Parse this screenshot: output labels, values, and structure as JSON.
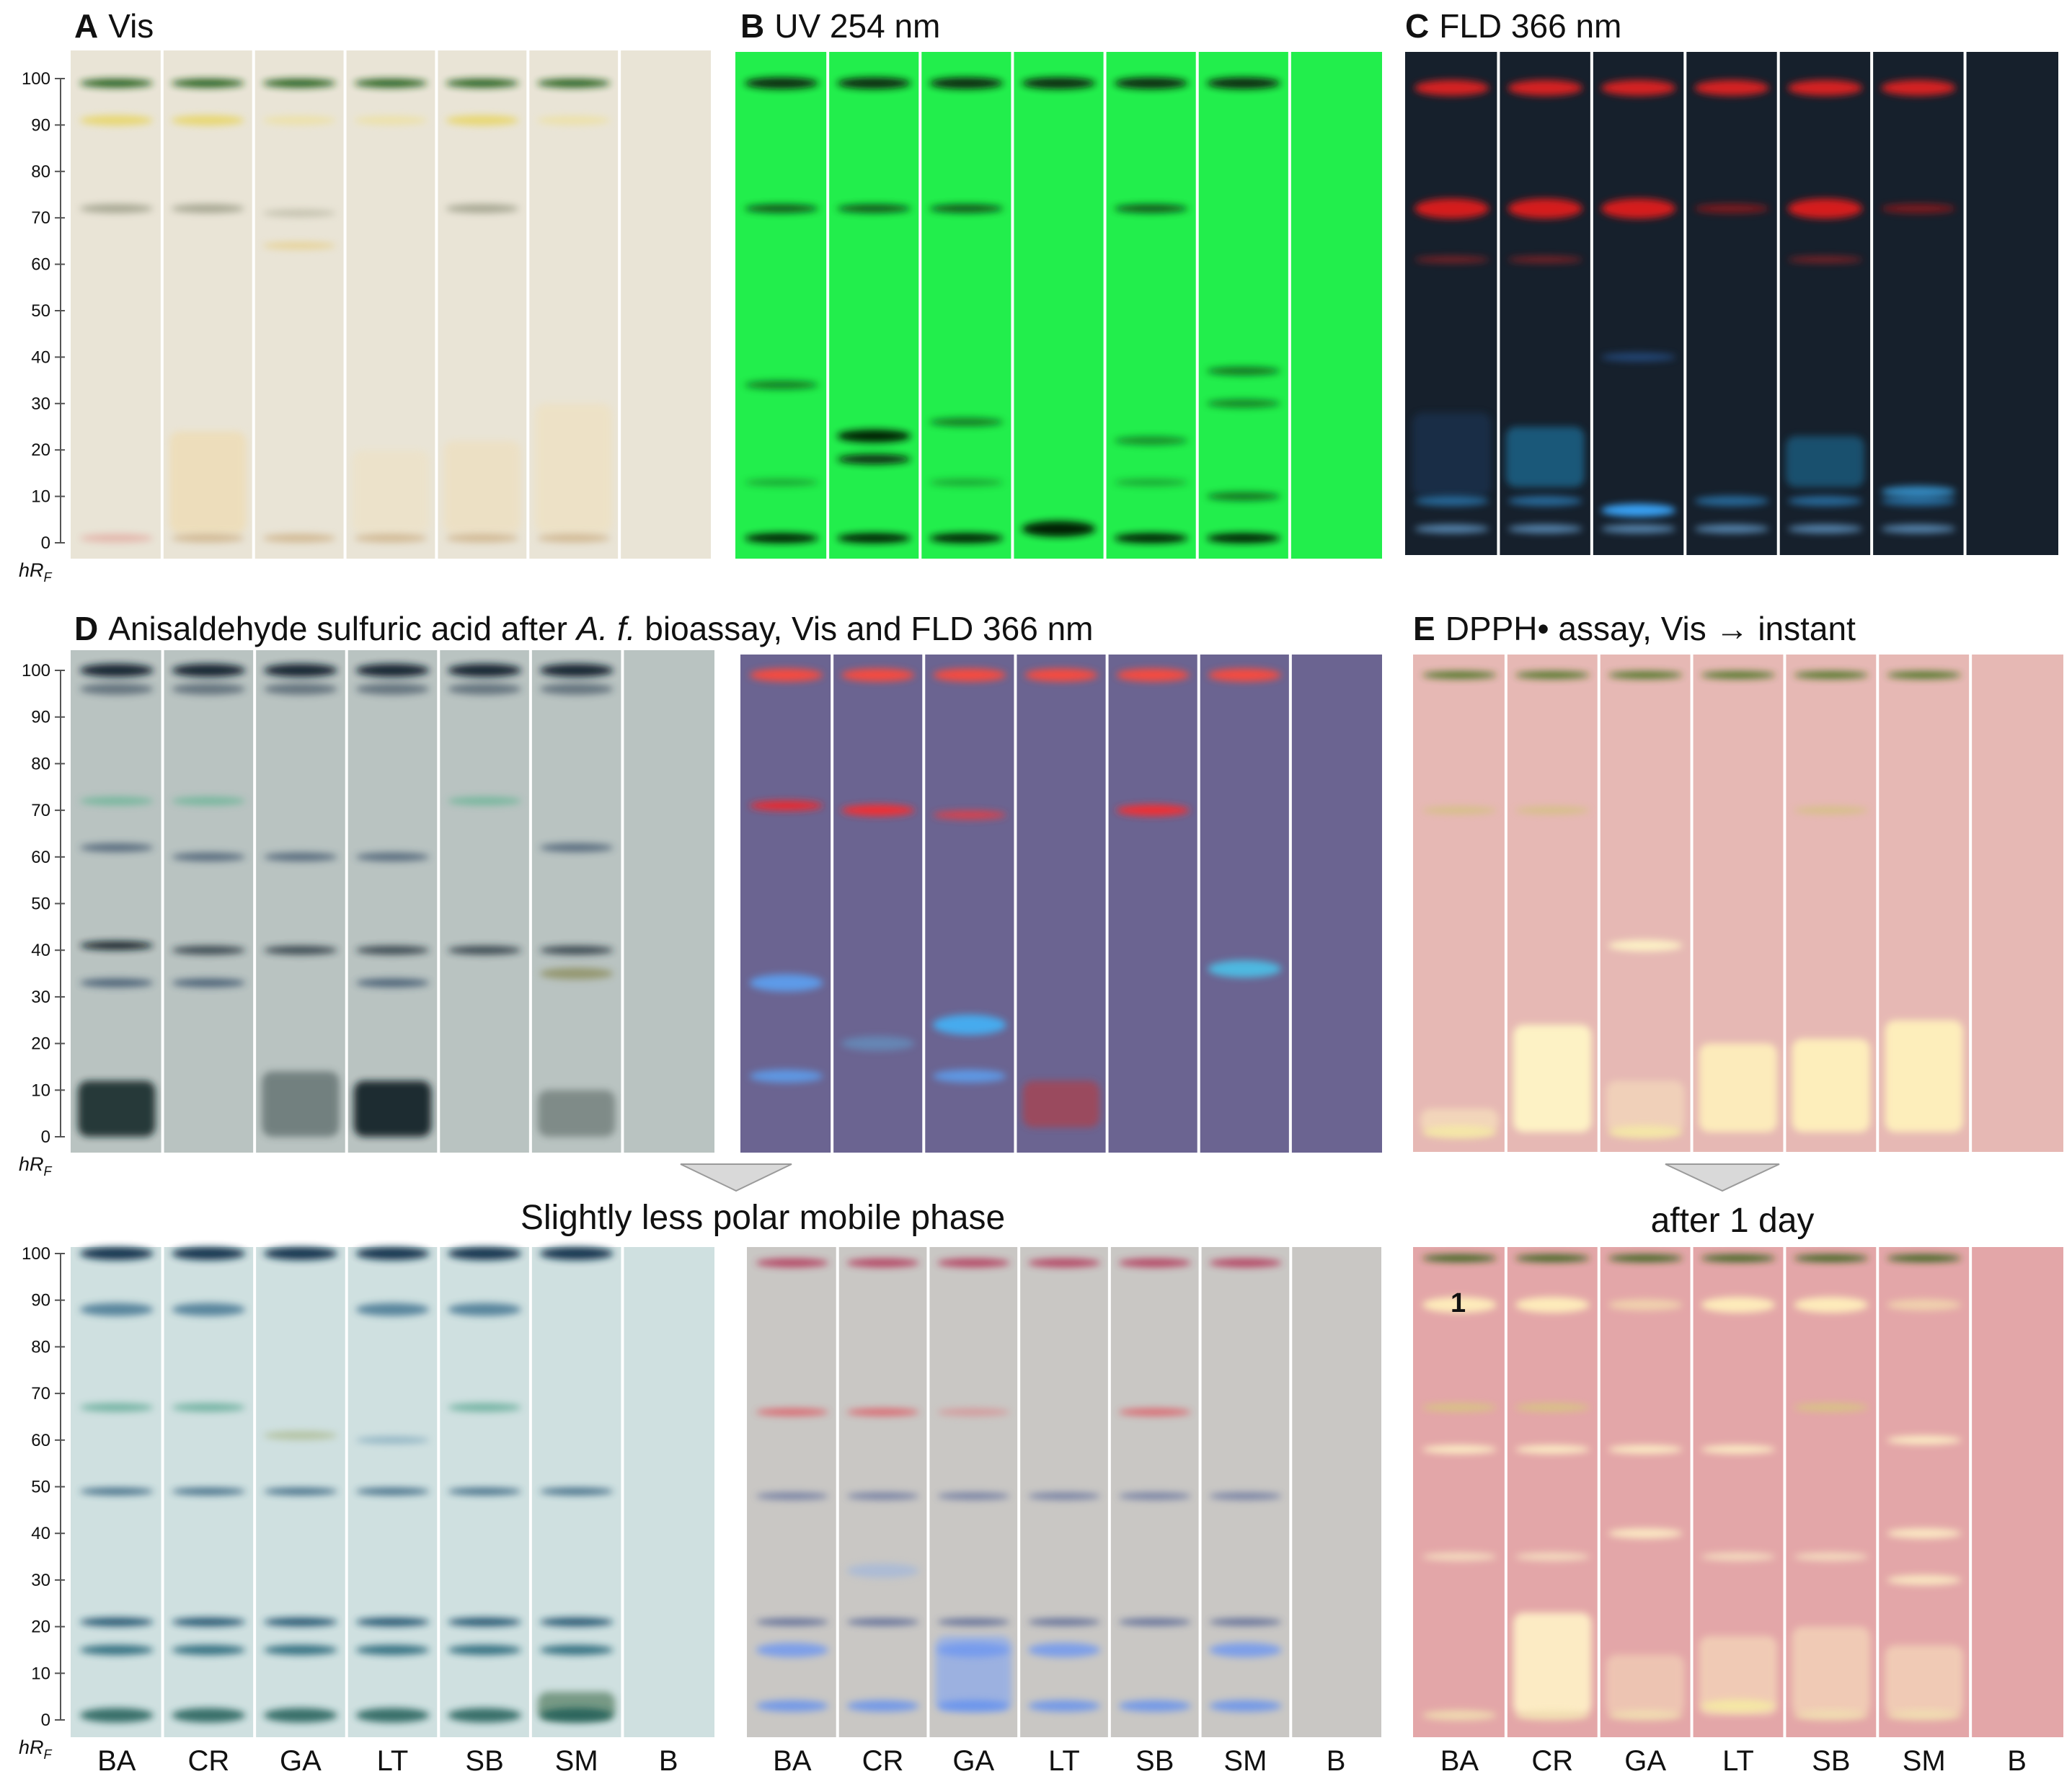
{
  "panels": {
    "A": {
      "letter": "A",
      "title": "Vis"
    },
    "B": {
      "letter": "B",
      "title": "UV 254 nm"
    },
    "C": {
      "letter": "C",
      "title": "FLD 366 nm"
    },
    "D": {
      "letter": "D",
      "title_pre": "Anisaldehyde sulfuric acid after ",
      "title_italic": "A. f.",
      "title_post": " bioassay, Vis and FLD 366 nm"
    },
    "E": {
      "letter": "E",
      "title": "DPPH• assay, Vis →  instant"
    }
  },
  "captions": {
    "lower_left": "Slightly less polar mobile phase",
    "lower_right": "after 1 day"
  },
  "axis": {
    "label_h": "hR",
    "label_sub": "F",
    "ticks": [
      "0",
      "10",
      "20",
      "30",
      "40",
      "50",
      "60",
      "70",
      "80",
      "90",
      "100"
    ]
  },
  "lanes": [
    "BA",
    "CR",
    "GA",
    "LT",
    "SB",
    "SM",
    "B"
  ],
  "annotation_1": "1",
  "colors": {
    "vis_bg": "#e9e4d6",
    "uv_bg": "#22ee4c",
    "fld_bg": "#16202c",
    "ana_bg": "#b9c3c1",
    "ana_fld_bg": "#6b6491",
    "dpph_bg": "#e6b8b4",
    "lower_ana_bg": "#cfe0e0",
    "lower_fld_bg": "#c9c7c4",
    "lower_dpph_bg": "#e3a6a8"
  }
}
